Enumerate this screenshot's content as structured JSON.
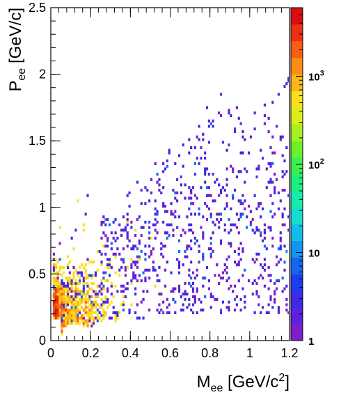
{
  "chart_data": {
    "type": "heatmap",
    "title": "",
    "xlabel": {
      "main": "M",
      "sub": "ee",
      "unit_pre": " [GeV/c",
      "sup": "2",
      "unit_post": "]"
    },
    "ylabel": {
      "main": "P",
      "sub": "ee",
      "unit": " [GeV/c]"
    },
    "xlim": [
      0,
      1.2
    ],
    "ylim": [
      0,
      2.5
    ],
    "x_ticks": [
      "0",
      "0.2",
      "0.4",
      "0.6",
      "0.8",
      "1",
      "1.2"
    ],
    "y_ticks": [
      "0",
      "0.5",
      "1",
      "1.5",
      "2",
      "2.5"
    ],
    "z_scale": "log",
    "zlim": [
      1,
      6000
    ],
    "z_ticks": [
      {
        "value": 1,
        "base": "1",
        "exp": ""
      },
      {
        "value": 10,
        "base": "10",
        "exp": ""
      },
      {
        "value": 100,
        "base": "10",
        "exp": "2"
      },
      {
        "value": 1000,
        "base": "10",
        "exp": "3"
      }
    ],
    "grid": false,
    "colormap": [
      "#7c1fc8",
      "#5a22dc",
      "#3b2ae6",
      "#1f3cf0",
      "#1468f0",
      "#1494ee",
      "#14bde6",
      "#16dcd2",
      "#18ecaa",
      "#1ef07e",
      "#3cf050",
      "#6cf02c",
      "#a8f020",
      "#dcee1a",
      "#fbe01a",
      "#fcb818",
      "#fc8c16",
      "#f85e14",
      "#ec3012",
      "#d80e10"
    ],
    "density_regions": [
      {
        "x_range": [
          0.02,
          0.06
        ],
        "y_range": [
          0.15,
          0.45
        ],
        "z": 5000
      },
      {
        "x_range": [
          0.03,
          0.08
        ],
        "y_range": [
          0.3,
          0.8
        ],
        "z": 800
      },
      {
        "x_range": [
          0.05,
          0.15
        ],
        "y_range": [
          0.3,
          1.2
        ],
        "z": 150
      },
      {
        "x_range": [
          0.1,
          0.3
        ],
        "y_range": [
          0.1,
          0.6
        ],
        "z": 80
      },
      {
        "x_range": [
          0.2,
          0.5
        ],
        "y_range": [
          0.1,
          1.0
        ],
        "z": 10
      },
      {
        "x_range": [
          0.4,
          0.8
        ],
        "y_range": [
          0.2,
          1.6
        ],
        "z": 2
      },
      {
        "x_range": [
          0.8,
          1.2
        ],
        "y_range": [
          0.4,
          2.0
        ],
        "z": 1
      }
    ]
  }
}
